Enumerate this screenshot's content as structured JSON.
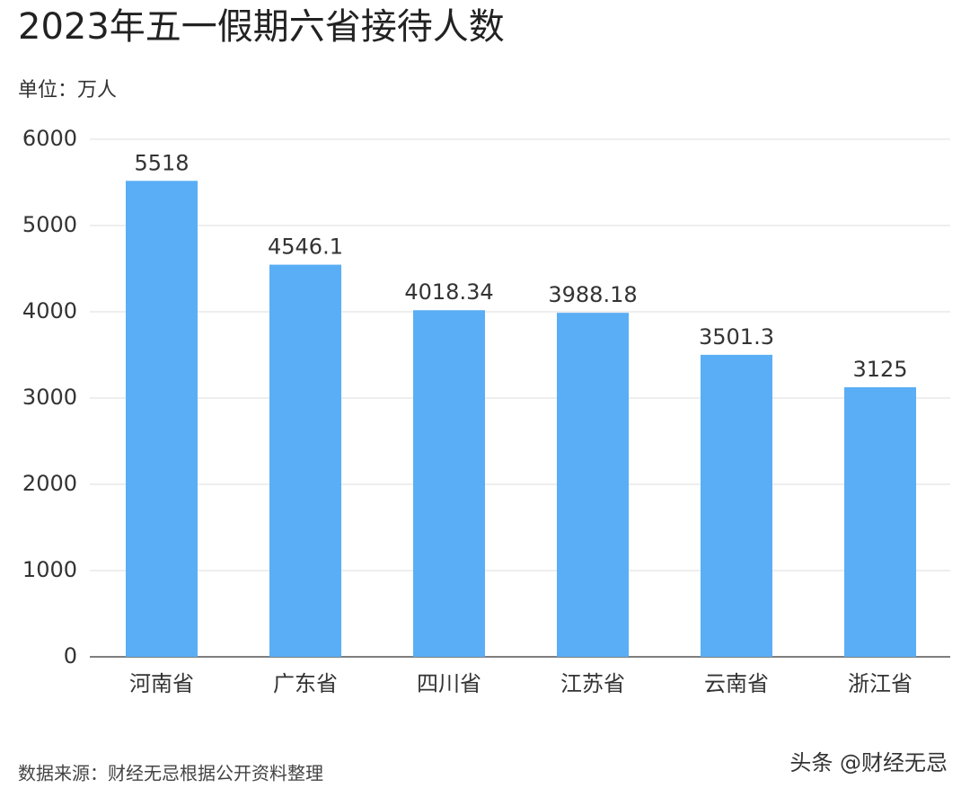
{
  "chart_data": {
    "type": "bar",
    "title": "2023年五一假期六省接待人数",
    "subtitle": "单位：万人",
    "categories": [
      "河南省",
      "广东省",
      "四川省",
      "江苏省",
      "云南省",
      "浙江省"
    ],
    "values": [
      5518,
      4546.1,
      4018.34,
      3988.18,
      3501.3,
      3125
    ],
    "color": "#5aaef5",
    "ylim": [
      0,
      6000
    ],
    "yticks": [
      0,
      1000,
      2000,
      3000,
      4000,
      5000,
      6000
    ],
    "grid": true,
    "source": "数据来源：财经无忌根据公开资料整理",
    "watermark": "头条 @财经无忌"
  }
}
